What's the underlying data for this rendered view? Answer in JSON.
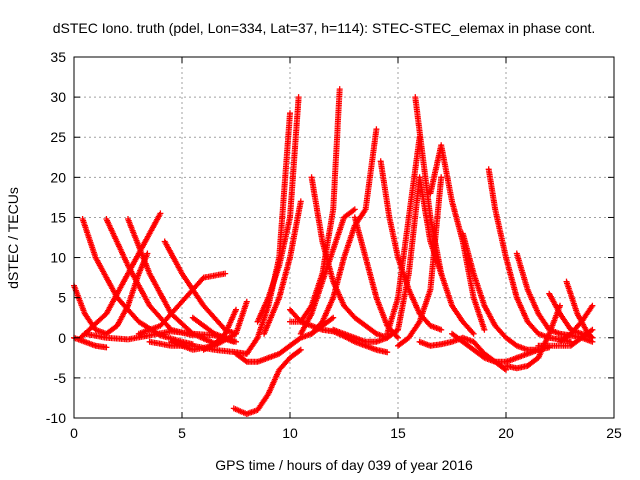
{
  "chart_data": {
    "type": "scatter",
    "title": "dSTEC Iono. truth (pdel, Lon=334, Lat=37, h=114): STEC-STEC_elemax in phase cont.",
    "xlabel": "GPS time / hours of day 039 of year 2016",
    "ylabel": "dSTEC  / TECUs",
    "xlim": [
      0,
      25
    ],
    "ylim": [
      -10,
      35
    ],
    "xticks": [
      "0",
      "5",
      "10",
      "15",
      "20",
      "25"
    ],
    "yticks": [
      "-10",
      "-5",
      "0",
      "5",
      "10",
      "15",
      "20",
      "25",
      "30",
      "35"
    ],
    "grid": true,
    "marker": "+",
    "color": "#ff0000",
    "series": [
      {
        "x": [
          0.0,
          0.5,
          1.0,
          1.5,
          2.0,
          2.5,
          3.0,
          3.4
        ],
        "y": [
          6.5,
          3.0,
          1.0,
          0.5,
          1.5,
          4.0,
          8.0,
          10.5
        ]
      },
      {
        "x": [
          0.0,
          0.5,
          1.0,
          1.5
        ],
        "y": [
          0.0,
          -0.5,
          -1.0,
          -1.2
        ]
      },
      {
        "x": [
          0.4,
          1.0,
          2.0,
          3.0,
          4.0,
          5.0,
          5.5
        ],
        "y": [
          14.8,
          10.0,
          5.0,
          2.0,
          0.3,
          -0.5,
          -0.8
        ]
      },
      {
        "x": [
          0.3,
          1.5,
          2.5,
          3.5,
          4.0
        ],
        "y": [
          0.0,
          3.0,
          8.0,
          13.0,
          15.5
        ]
      },
      {
        "x": [
          1.5,
          2.5,
          3.5,
          4.5,
          5.5
        ],
        "y": [
          14.8,
          9.0,
          4.0,
          1.0,
          0.3
        ]
      },
      {
        "x": [
          2.5,
          3.5,
          4.5,
          5.5,
          6.5
        ],
        "y": [
          14.8,
          8.0,
          3.0,
          0.5,
          -0.7
        ]
      },
      {
        "x": [
          0.5,
          1.5,
          2.5,
          3.5,
          4.5,
          5.5,
          6.5,
          7.4
        ],
        "y": [
          0.5,
          0.0,
          -0.2,
          0.3,
          0.8,
          0.5,
          0.3,
          -0.5
        ]
      },
      {
        "x": [
          3.0,
          4.0,
          5.0,
          6.0,
          7.0
        ],
        "y": [
          0.5,
          1.5,
          4.5,
          7.5,
          8.0
        ]
      },
      {
        "x": [
          4.2,
          5.0,
          6.0,
          7.0,
          7.5
        ],
        "y": [
          12.0,
          8.0,
          4.0,
          1.0,
          0.5
        ]
      },
      {
        "x": [
          3.5,
          4.5,
          5.5,
          6.5,
          7.5,
          8.0
        ],
        "y": [
          -0.5,
          -1.0,
          -1.0,
          -1.5,
          -1.8,
          -2.0
        ]
      },
      {
        "x": [
          4.5,
          5.5,
          6.5,
          7.5,
          8.0
        ],
        "y": [
          -0.5,
          -1.5,
          -1.0,
          0.5,
          4.5
        ]
      },
      {
        "x": [
          5.5,
          6.5,
          7.0,
          7.5
        ],
        "y": [
          2.5,
          0.5,
          0.0,
          -0.5
        ]
      },
      {
        "x": [
          6.0,
          6.5,
          7.0,
          7.5
        ],
        "y": [
          -1.5,
          -0.8,
          0.5,
          3.5
        ]
      },
      {
        "x": [
          7.5,
          8.0,
          8.5,
          9.0,
          9.5,
          10.0,
          10.5,
          11.0,
          11.5,
          12.0
        ],
        "y": [
          -2.0,
          -3.0,
          -3.0,
          -2.5,
          -2.0,
          -1.0,
          0.0,
          0.5,
          1.5,
          2.5
        ]
      },
      {
        "x": [
          7.4,
          8.0,
          8.5,
          9.0,
          9.5,
          10.0,
          10.5
        ],
        "y": [
          -8.8,
          -9.5,
          -9.0,
          -7.0,
          -4.0,
          -2.5,
          -1.5
        ]
      },
      {
        "x": [
          8.0,
          8.5,
          9.0,
          9.5,
          10.0
        ],
        "y": [
          -2.0,
          0.0,
          4.0,
          10.0,
          28.0
        ]
      },
      {
        "x": [
          8.5,
          9.0,
          9.5,
          10.0,
          10.4
        ],
        "y": [
          2.0,
          5.0,
          9.0,
          15.0,
          30.0
        ]
      },
      {
        "x": [
          8.8,
          9.5,
          10.0,
          10.5
        ],
        "y": [
          0.5,
          5.0,
          10.0,
          17.0
        ]
      },
      {
        "x": [
          10.0,
          10.5,
          11.0,
          11.5,
          12.0,
          12.3
        ],
        "y": [
          2.0,
          2.0,
          4.0,
          8.0,
          16.0,
          31.0
        ]
      },
      {
        "x": [
          10.0,
          10.5,
          11.0,
          11.5,
          12.0,
          12.5,
          13.0,
          13.5,
          14.0,
          14.5
        ],
        "y": [
          3.5,
          2.0,
          1.5,
          1.0,
          0.8,
          0.2,
          -0.5,
          -1.0,
          -1.5,
          -1.8
        ]
      },
      {
        "x": [
          10.5,
          11.0,
          11.5,
          12.0,
          12.5,
          13.0
        ],
        "y": [
          0.5,
          3.0,
          7.0,
          11.0,
          15.0,
          16.0
        ]
      },
      {
        "x": [
          11.0,
          11.5,
          12.0,
          12.5,
          13.0,
          13.5,
          14.0
        ],
        "y": [
          0.5,
          2.0,
          5.0,
          10.0,
          14.0,
          16.0,
          26.0
        ]
      },
      {
        "x": [
          11.0,
          11.5,
          12.0,
          12.5,
          13.0,
          13.5,
          14.0,
          14.5
        ],
        "y": [
          20.0,
          12.0,
          7.0,
          4.0,
          2.5,
          1.5,
          0.5,
          0.0
        ]
      },
      {
        "x": [
          12.0,
          12.5,
          13.0,
          13.5,
          14.0,
          14.5,
          15.0
        ],
        "y": [
          1.0,
          0.5,
          0.0,
          -0.5,
          -0.5,
          0.0,
          1.0
        ]
      },
      {
        "x": [
          13.0,
          13.5,
          14.0,
          14.5,
          15.0
        ],
        "y": [
          15.0,
          10.0,
          5.0,
          1.5,
          0.0
        ]
      },
      {
        "x": [
          14.2,
          14.6,
          15.0,
          15.5,
          16.0,
          16.5,
          17.0
        ],
        "y": [
          22.0,
          15.0,
          10.0,
          6.0,
          3.0,
          1.5,
          1.0
        ]
      },
      {
        "x": [
          14.5,
          15.0,
          15.5,
          16.0
        ],
        "y": [
          0.5,
          5.0,
          15.0,
          25.0
        ]
      },
      {
        "x": [
          15.0,
          15.5,
          16.0,
          16.5,
          17.0
        ],
        "y": [
          1.0,
          8.0,
          20.0,
          12.0,
          8.0
        ]
      },
      {
        "x": [
          15.8,
          16.5,
          17.0,
          17.5,
          18.0,
          18.5
        ],
        "y": [
          30.0,
          15.0,
          8.0,
          4.0,
          2.0,
          0.5
        ]
      },
      {
        "x": [
          15.0,
          15.5,
          16.0,
          16.5,
          17.0
        ],
        "y": [
          -1.0,
          0.0,
          2.0,
          6.0,
          20.0
        ]
      },
      {
        "x": [
          16.5,
          17.0,
          17.5,
          18.0,
          18.5,
          19.0
        ],
        "y": [
          18.0,
          24.0,
          17.0,
          12.0,
          5.0,
          1.0
        ]
      },
      {
        "x": [
          16.0,
          16.5,
          17.0,
          17.5,
          18.0,
          18.5,
          19.0,
          19.5,
          20.0
        ],
        "y": [
          -0.5,
          -1.0,
          -0.8,
          -0.5,
          0.0,
          -0.5,
          -2.0,
          -3.0,
          -4.0
        ]
      },
      {
        "x": [
          17.5,
          18.0,
          18.5,
          19.0,
          19.5,
          20.0,
          20.5,
          21.0,
          21.5
        ],
        "y": [
          0.5,
          -0.5,
          -1.5,
          -2.5,
          -3.0,
          -3.0,
          -2.5,
          -2.0,
          -1.5
        ]
      },
      {
        "x": [
          18.0,
          18.5,
          19.0,
          19.5,
          20.0,
          20.5,
          21.0,
          21.5,
          22.0
        ],
        "y": [
          13.0,
          8.0,
          4.0,
          1.5,
          0.0,
          -1.0,
          -1.5,
          -1.5,
          -1.2
        ]
      },
      {
        "x": [
          19.2,
          19.5,
          20.0,
          20.5,
          21.0,
          21.5,
          22.0,
          22.5,
          23.0
        ],
        "y": [
          21.0,
          16.0,
          10.0,
          5.0,
          2.0,
          0.5,
          0.0,
          -0.2,
          -0.5
        ]
      },
      {
        "x": [
          20.5,
          21.0,
          21.5,
          22.0,
          22.5,
          23.0,
          23.5,
          24.0
        ],
        "y": [
          10.5,
          6.0,
          3.0,
          1.0,
          0.5,
          0.3,
          0.0,
          -0.5
        ]
      },
      {
        "x": [
          20.0,
          20.5,
          21.0,
          21.5,
          22.0,
          22.5
        ],
        "y": [
          -3.5,
          -3.8,
          -3.5,
          -2.5,
          0.5,
          4.0
        ]
      },
      {
        "x": [
          21.5,
          22.0,
          22.5,
          23.0,
          23.5,
          24.0
        ],
        "y": [
          -1.0,
          -1.0,
          -1.0,
          -1.0,
          0.0,
          1.0
        ]
      },
      {
        "x": [
          22.0,
          22.5,
          23.0,
          23.5,
          24.0
        ],
        "y": [
          5.5,
          3.0,
          1.0,
          0.5,
          0.0
        ]
      },
      {
        "x": [
          22.5,
          23.0,
          23.5,
          24.0
        ],
        "y": [
          -0.5,
          0.5,
          2.0,
          4.0
        ]
      },
      {
        "x": [
          22.8,
          23.3,
          23.8,
          24.0
        ],
        "y": [
          7.0,
          3.0,
          0.5,
          0.0
        ]
      }
    ]
  }
}
